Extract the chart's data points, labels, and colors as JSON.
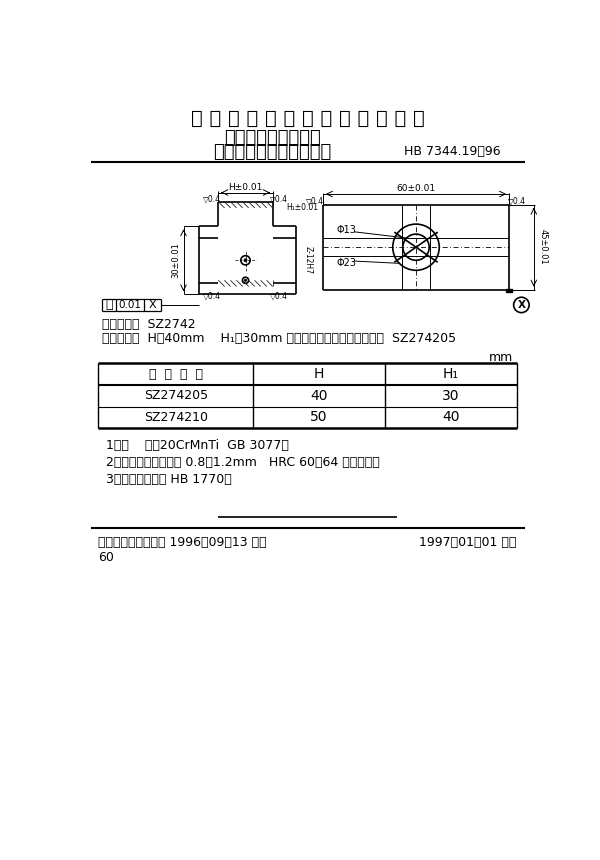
{
  "title_main": "中 华 人 民 共 和 国 航 空 工 业 标 准",
  "title_sub1": "数控机床用夹具元件",
  "title_sub2": "中型二阶长方形定位支承",
  "std_number": "HB 7344.19－96",
  "classification_label": "分类代号：",
  "classification_value": "SZ2742",
  "example_label": "标记示例：",
  "example_value": "H＝40mm    H₁＝30mm 的中型二阶长方形定位支承：  SZ274205",
  "unit_label": "mm",
  "table_col0": "标  记  代  号",
  "table_col1": "H",
  "table_col2": "H₁",
  "table_rows": [
    [
      "SZ274205",
      "40",
      "30"
    ],
    [
      "SZ274210",
      "50",
      "40"
    ]
  ],
  "notes": [
    "1．材    料：20CrMnTi  GB 3077。",
    "2．热处理：渗碳深度 0.8～1.2mm   HRC 60～64 人工时效。",
    "3．技术条件：按 HB 1770。"
  ],
  "footer_left": "中国航空工业总公司 1996－09－13 发布",
  "footer_right": "1997－01－01 实施",
  "footer_page": "60",
  "bg_color": "#ffffff"
}
